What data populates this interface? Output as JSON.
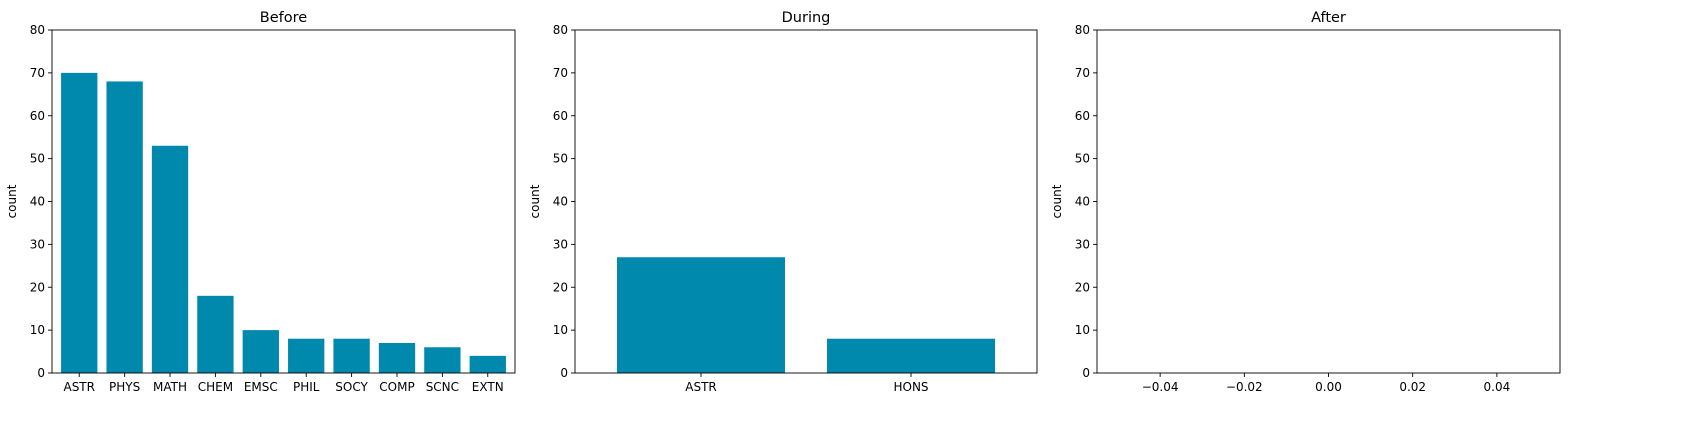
{
  "bar_color": "#0088ad",
  "chart_data": [
    {
      "type": "bar",
      "title": "Before",
      "ylabel": "count",
      "xlabel": "",
      "ylim": [
        0,
        80
      ],
      "yticks": [
        0,
        10,
        20,
        30,
        40,
        50,
        60,
        70,
        80
      ],
      "categories": [
        "ASTR",
        "PHYS",
        "MATH",
        "CHEM",
        "EMSC",
        "PHIL",
        "SOCY",
        "COMP",
        "SCNC",
        "EXTN"
      ],
      "values": [
        70,
        68,
        53,
        18,
        10,
        8,
        8,
        7,
        6,
        4
      ],
      "grid": false
    },
    {
      "type": "bar",
      "title": "During",
      "ylabel": "count",
      "xlabel": "",
      "ylim": [
        0,
        80
      ],
      "yticks": [
        0,
        10,
        20,
        30,
        40,
        50,
        60,
        70,
        80
      ],
      "categories": [
        "ASTR",
        "HONS"
      ],
      "values": [
        27,
        8
      ],
      "grid": false
    },
    {
      "type": "bar",
      "title": "After",
      "ylabel": "count",
      "xlabel": "",
      "ylim": [
        0,
        80
      ],
      "yticks": [
        0,
        10,
        20,
        30,
        40,
        50,
        60,
        70,
        80
      ],
      "xlim": [
        -0.055,
        0.055
      ],
      "xticks": [
        -0.04,
        -0.02,
        0.0,
        0.02,
        0.04
      ],
      "xtick_labels": [
        "−0.04",
        "−0.02",
        "0.00",
        "0.02",
        "0.04"
      ],
      "categories": [],
      "values": [],
      "grid": false
    }
  ]
}
